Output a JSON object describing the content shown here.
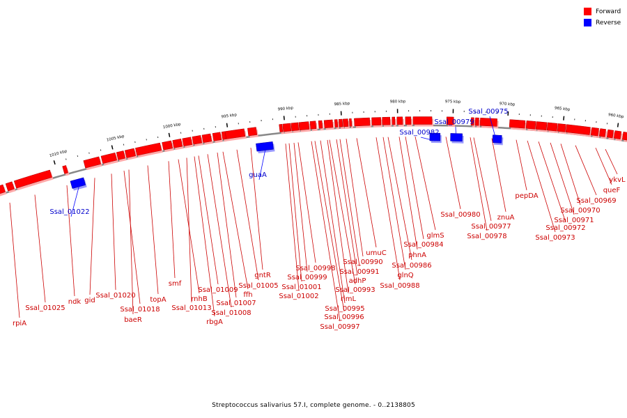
{
  "colors": {
    "forward": "#ff0000",
    "reverse": "#0000ff",
    "backbone": "#999999",
    "label_forward": "#cc0000",
    "label_reverse": "#0000cc"
  },
  "legend": [
    {
      "label": "Forward",
      "color": "#ff0000"
    },
    {
      "label": "Reverse",
      "color": "#0000ff"
    }
  ],
  "caption": "Streptococcus salivarius 57.I, complete genome. - 0..2138805",
  "ticks": [
    "960 kbp",
    "965 kbp",
    "970 kbp",
    "975 kbp",
    "980 kbp",
    "985 kbp",
    "990 kbp",
    "995 kbp",
    "1000 kbp",
    "1005 kbp",
    "1010 kbp"
  ],
  "reverse_genes": [
    "Ssal_01022",
    "guaA",
    "Ssal_00982",
    "Ssal_00979",
    "Ssal_00975"
  ],
  "forward_labels": [
    "rpiA",
    "Ssal_01025",
    "ndk",
    "gid",
    "Ssal_01020",
    "baeR",
    "Ssal_01018",
    "topA",
    "smf",
    "rnhB",
    "Ssal_01013",
    "rbgA",
    "Ssal_01009",
    "Ssal_01008",
    "Ssal_01007",
    "ffh",
    "Ssal_01005",
    "gntR",
    "Ssal_01002",
    "Ssal_01001",
    "Ssal_00999",
    "Ssal_00998",
    "Ssal_00997",
    "Ssal_00996",
    "Ssal_00995",
    "rimL",
    "Ssal_00993",
    "adhP",
    "Ssal_00991",
    "Ssal_00990",
    "umuC",
    "Ssal_00988",
    "glnQ",
    "Ssal_00986",
    "phnA",
    "Ssal_00984",
    "glmS",
    "Ssal_00980",
    "Ssal_00978",
    "Ssal_00977",
    "znuA",
    "pepDA",
    "Ssal_00973",
    "Ssal_00972",
    "Ssal_00971",
    "Ssal_00970",
    "Ssal_00969",
    "queF",
    "ykvL"
  ]
}
